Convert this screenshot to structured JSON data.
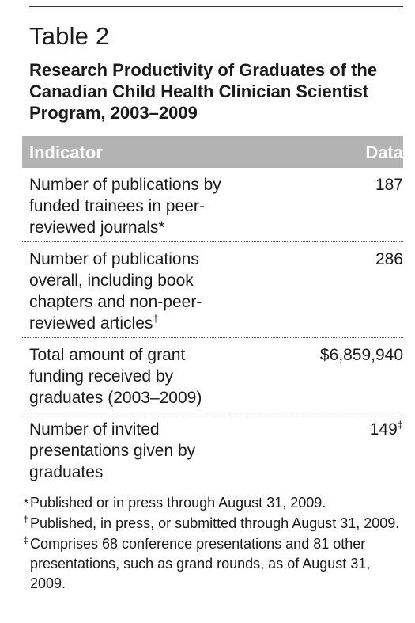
{
  "table_label": "Table 2",
  "title": "Research Productivity of Graduates of the Canadian Child Health Clinician Scientist Program, 2003–2009",
  "table": {
    "header": [
      "Indicator",
      "Data"
    ],
    "rows": [
      {
        "indicator": "Number of publications by funded trainees in peer-reviewed journals",
        "indicator_note": "*",
        "data": "187"
      },
      {
        "indicator": "Number of publications overall, including book chapters and non-peer-reviewed articles",
        "indicator_note": "†",
        "data": "286"
      },
      {
        "indicator": "Total amount of grant funding received by graduates (2003–2009)",
        "data": "$6,859,940"
      },
      {
        "indicator": "Number of invited presentations given by graduates",
        "data": "149",
        "data_note": "‡"
      }
    ]
  },
  "footnotes": [
    {
      "marker": "*",
      "text": "Published or in press through August 31, 2009."
    },
    {
      "marker": "†",
      "text": "Published, in press, or submitted through August 31, 2009."
    },
    {
      "marker": "‡",
      "text": "Comprises 68 conference presentations and 81 other presentations, such as grand rounds, as of August 31, 2009."
    }
  ]
}
